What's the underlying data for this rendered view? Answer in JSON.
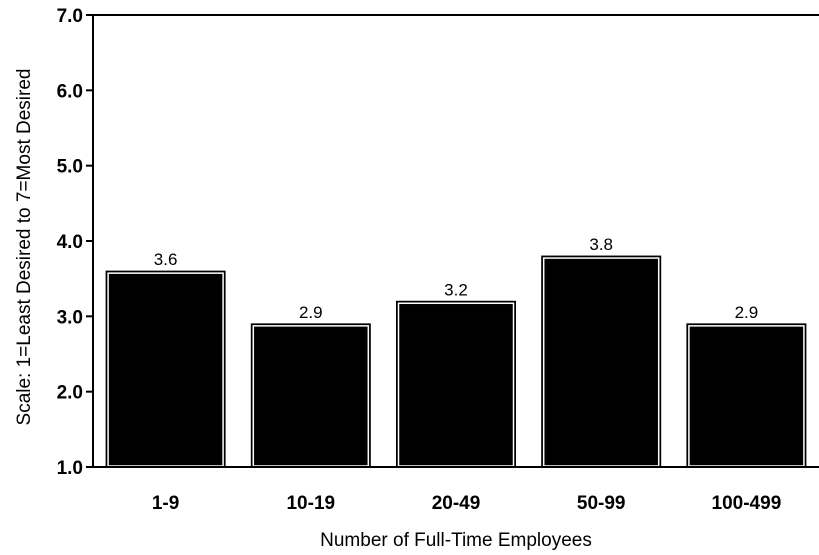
{
  "chart_data": {
    "type": "bar",
    "categories": [
      "1-9",
      "10-19",
      "20-49",
      "50-99",
      "100-499"
    ],
    "values": [
      3.6,
      2.9,
      3.2,
      3.8,
      2.9
    ],
    "value_labels": [
      "3.6",
      "2.9",
      "3.2",
      "3.8",
      "2.9"
    ],
    "title": "",
    "xlabel": "Number of Full-Time Employees",
    "ylabel": "Scale: 1=Least Desired to 7=Most Desired",
    "ylim": [
      1.0,
      7.0
    ],
    "yticks": [
      1.0,
      2.0,
      3.0,
      4.0,
      5.0,
      6.0,
      7.0
    ],
    "ytick_labels": [
      "1.0",
      "2.0",
      "3.0",
      "4.0",
      "5.0",
      "6.0",
      "7.0"
    ],
    "grid": false,
    "legend": "none",
    "bar_color": "#000000",
    "bar_outline": "#ffffff",
    "background": "#ffffff"
  }
}
